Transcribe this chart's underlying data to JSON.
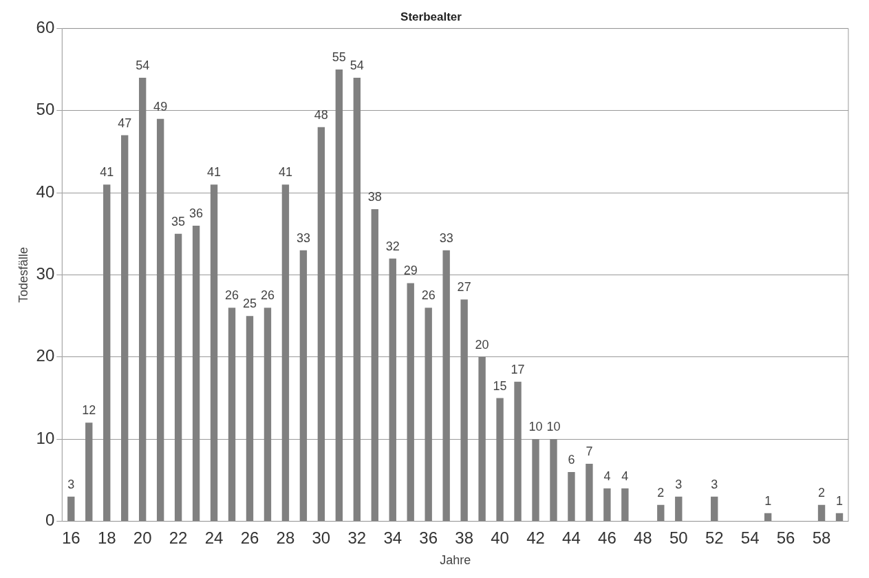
{
  "chart_data": {
    "type": "bar",
    "title": "Sterbealter",
    "xlabel": "Jahre",
    "ylabel": "Todesfälle",
    "categories": [
      "16",
      null,
      "18",
      null,
      "20",
      null,
      "22",
      null,
      "24",
      null,
      "26",
      null,
      "28",
      null,
      "30",
      null,
      "32",
      null,
      "34",
      null,
      "36",
      null,
      "38",
      null,
      "40",
      null,
      "42",
      null,
      "44",
      null,
      "46",
      null,
      "48",
      null,
      "50",
      null,
      "52",
      null,
      "54",
      null,
      "56",
      null,
      "58",
      null
    ],
    "values": [
      3,
      12,
      41,
      47,
      54,
      49,
      35,
      36,
      41,
      26,
      25,
      26,
      41,
      33,
      48,
      55,
      54,
      38,
      32,
      29,
      26,
      33,
      27,
      20,
      15,
      17,
      10,
      10,
      6,
      7,
      4,
      4,
      0,
      2,
      3,
      0,
      3,
      0,
      0,
      1,
      0,
      0,
      2,
      1
    ],
    "value_labels": [
      "3",
      "12",
      "41",
      "47",
      "54",
      "49",
      "35",
      "36",
      "41",
      "26",
      "25",
      "26",
      "41",
      "33",
      "48",
      "55",
      "54",
      "38",
      "32",
      "29",
      "26",
      "33",
      "27",
      "20",
      "15",
      "17",
      "10",
      "10",
      "6",
      "7",
      "4",
      "4",
      null,
      "2",
      "3",
      null,
      "3",
      null,
      null,
      "1",
      null,
      null,
      "2",
      "1"
    ],
    "color": "#808080",
    "ylim": [
      0,
      60
    ],
    "yticks": [
      0,
      10,
      20,
      30,
      40,
      50,
      60
    ],
    "grid": "y",
    "legend": false
  }
}
